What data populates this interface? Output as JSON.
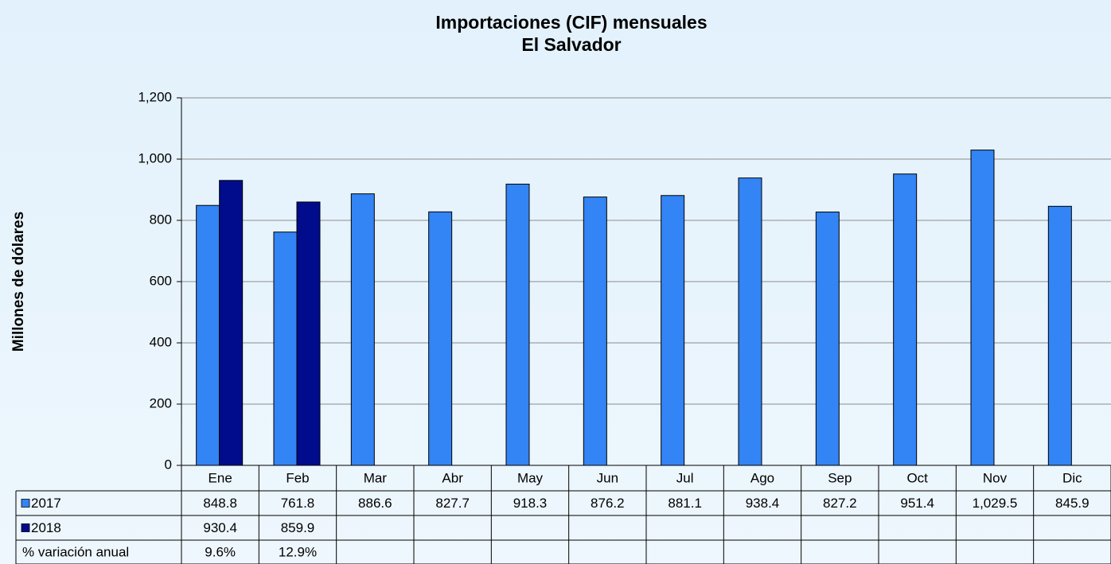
{
  "chart_data": {
    "type": "bar",
    "title": "Importaciones (CIF) mensuales",
    "subtitle": "El Salvador",
    "ylabel": "Millones de dólares",
    "categories": [
      "Ene",
      "Feb",
      "Mar",
      "Abr",
      "May",
      "Jun",
      "Jul",
      "Ago",
      "Sep",
      "Oct",
      "Nov",
      "Dic"
    ],
    "series": [
      {
        "name": "2017",
        "color": "#3384f4",
        "values": [
          848.8,
          761.8,
          886.6,
          827.7,
          918.3,
          876.2,
          881.1,
          938.4,
          827.2,
          951.4,
          1029.5,
          845.9
        ],
        "value_labels": [
          "848.8",
          "761.8",
          "886.6",
          "827.7",
          "918.3",
          "876.2",
          "881.1",
          "938.4",
          "827.2",
          "951.4",
          "1,029.5",
          "845.9"
        ]
      },
      {
        "name": "2018",
        "color": "#000c8c",
        "values": [
          930.4,
          859.9,
          null,
          null,
          null,
          null,
          null,
          null,
          null,
          null,
          null,
          null
        ]
      }
    ],
    "table_rows": [
      {
        "name": "% variación anual",
        "values": [
          9.6,
          12.9,
          null,
          null,
          null,
          null,
          null,
          null,
          null,
          null,
          null,
          null
        ],
        "value_labels": [
          "9.6%",
          "12.9%",
          null,
          null,
          null,
          null,
          null,
          null,
          null,
          null,
          null,
          null
        ]
      }
    ],
    "ylim": [
      0,
      1200
    ],
    "yticks": [
      0,
      200,
      400,
      600,
      800,
      {
        "value": 1000,
        "label": "1,000"
      },
      {
        "value": 1200,
        "label": "1,200"
      }
    ],
    "grid": true
  }
}
